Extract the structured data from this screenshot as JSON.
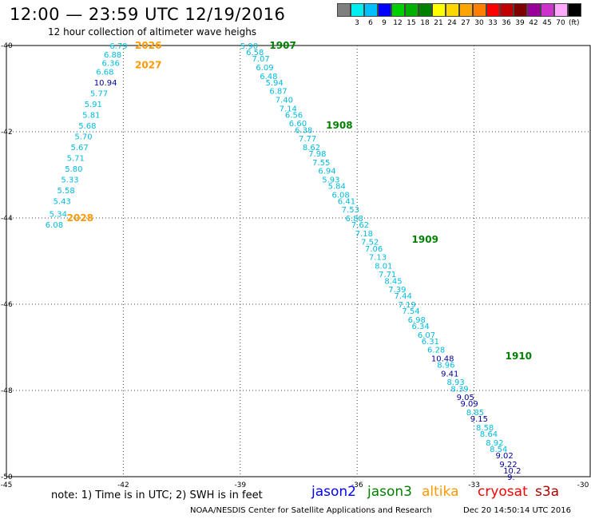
{
  "title": "12:00 — 23:59 UTC 12/19/2016",
  "subtitle": "12 hour collection of altimeter wave heighs",
  "legend": {
    "unit": "(ft)",
    "bins": [
      {
        "label": "",
        "color": "#7f7f7f"
      },
      {
        "label": "3",
        "color": "#00eeee"
      },
      {
        "label": "6",
        "color": "#00bfff"
      },
      {
        "label": "9",
        "color": "#0000ff"
      },
      {
        "label": "12",
        "color": "#00d000"
      },
      {
        "label": "15",
        "color": "#00b000"
      },
      {
        "label": "18",
        "color": "#008000"
      },
      {
        "label": "21",
        "color": "#ffff00"
      },
      {
        "label": "24",
        "color": "#ffd700"
      },
      {
        "label": "27",
        "color": "#ffa500"
      },
      {
        "label": "30",
        "color": "#ff7f00"
      },
      {
        "label": "33",
        "color": "#ff0000"
      },
      {
        "label": "36",
        "color": "#c00000"
      },
      {
        "label": "39",
        "color": "#800000"
      },
      {
        "label": "42",
        "color": "#990099"
      },
      {
        "label": "45",
        "color": "#cc33cc"
      },
      {
        "label": "70",
        "color": "#ffaaff"
      },
      {
        "label": "",
        "color": "#000000"
      }
    ]
  },
  "axes": {
    "lon_ticks": [
      "-45",
      "-42",
      "-39",
      "-36",
      "-33",
      "-30"
    ],
    "lat_ticks": [
      "-40",
      "-42",
      "-44",
      "-46",
      "-48",
      "-50"
    ]
  },
  "colors": {
    "cyan": "#00bbdd",
    "navy": "#000099",
    "green": "#008000",
    "orange": "#ff9900"
  },
  "tracks": [
    {
      "times": [
        {
          "label": "2026",
          "color": "orange",
          "lon": -41.7,
          "lat": -40.0
        },
        {
          "label": "2027",
          "color": "orange",
          "lon": -41.7,
          "lat": -40.45
        },
        {
          "label": "2028",
          "color": "orange",
          "lon": -43.45,
          "lat": -44.0
        }
      ],
      "obs": [
        {
          "v": "6.79",
          "lon": -42.35,
          "lat": -40.0,
          "c": "cyan"
        },
        {
          "v": "6.88",
          "lon": -42.5,
          "lat": -40.2,
          "c": "cyan"
        },
        {
          "v": "6.36",
          "lon": -42.55,
          "lat": -40.4,
          "c": "cyan"
        },
        {
          "v": "6.68",
          "lon": -42.7,
          "lat": -40.6,
          "c": "cyan"
        },
        {
          "v": "10.94",
          "lon": -42.75,
          "lat": -40.85,
          "c": "navy"
        },
        {
          "v": "5.77",
          "lon": -42.85,
          "lat": -41.1,
          "c": "cyan"
        },
        {
          "v": "5.91",
          "lon": -43.0,
          "lat": -41.35,
          "c": "cyan"
        },
        {
          "v": "5.81",
          "lon": -43.05,
          "lat": -41.6,
          "c": "cyan"
        },
        {
          "v": "5.68",
          "lon": -43.15,
          "lat": -41.85,
          "c": "cyan"
        },
        {
          "v": "5.70",
          "lon": -43.25,
          "lat": -42.1,
          "c": "cyan"
        },
        {
          "v": "5.67",
          "lon": -43.35,
          "lat": -42.35,
          "c": "cyan"
        },
        {
          "v": "5.71",
          "lon": -43.45,
          "lat": -42.6,
          "c": "cyan"
        },
        {
          "v": "5.80",
          "lon": -43.5,
          "lat": -42.85,
          "c": "cyan"
        },
        {
          "v": "5.33",
          "lon": -43.6,
          "lat": -43.1,
          "c": "cyan"
        },
        {
          "v": "5.58",
          "lon": -43.7,
          "lat": -43.35,
          "c": "cyan"
        },
        {
          "v": "5.43",
          "lon": -43.8,
          "lat": -43.6,
          "c": "cyan"
        },
        {
          "v": "5.34",
          "lon": -43.9,
          "lat": -43.9,
          "c": "cyan"
        },
        {
          "v": "6.08",
          "lon": -44.0,
          "lat": -44.15,
          "c": "cyan"
        }
      ]
    },
    {
      "times": [
        {
          "label": "1907",
          "color": "green",
          "lon": -38.25,
          "lat": -40.0
        },
        {
          "label": "1908",
          "color": "green",
          "lon": -36.8,
          "lat": -41.85
        },
        {
          "label": "1909",
          "color": "green",
          "lon": -34.6,
          "lat": -44.5
        },
        {
          "label": "1910",
          "color": "green",
          "lon": -32.2,
          "lat": -47.2
        }
      ],
      "obs": [
        {
          "v": "5.90",
          "lon": -39.0,
          "lat": -40.0,
          "c": "cyan"
        },
        {
          "v": "6.58",
          "lon": -38.85,
          "lat": -40.15,
          "c": "cyan"
        },
        {
          "v": "7.07",
          "lon": -38.7,
          "lat": -40.3,
          "c": "cyan"
        },
        {
          "v": "6.09",
          "lon": -38.6,
          "lat": -40.5,
          "c": "cyan"
        },
        {
          "v": "6.48",
          "lon": -38.5,
          "lat": -40.7,
          "c": "cyan"
        },
        {
          "v": "5.94",
          "lon": -38.35,
          "lat": -40.85,
          "c": "cyan"
        },
        {
          "v": "6.87",
          "lon": -38.25,
          "lat": -41.05,
          "c": "cyan"
        },
        {
          "v": "7.40",
          "lon": -38.1,
          "lat": -41.25,
          "c": "cyan"
        },
        {
          "v": "7.14",
          "lon": -38.0,
          "lat": -41.45,
          "c": "cyan"
        },
        {
          "v": "6.56",
          "lon": -37.85,
          "lat": -41.6,
          "c": "cyan"
        },
        {
          "v": "6.60",
          "lon": -37.75,
          "lat": -41.8,
          "c": "cyan"
        },
        {
          "v": "6.38",
          "lon": -37.6,
          "lat": -41.95,
          "c": "cyan"
        },
        {
          "v": "7.77",
          "lon": -37.5,
          "lat": -42.15,
          "c": "cyan"
        },
        {
          "v": "8.62",
          "lon": -37.4,
          "lat": -42.35,
          "c": "cyan"
        },
        {
          "v": "7.98",
          "lon": -37.25,
          "lat": -42.5,
          "c": "cyan"
        },
        {
          "v": "7.55",
          "lon": -37.15,
          "lat": -42.7,
          "c": "cyan"
        },
        {
          "v": "6.94",
          "lon": -37.0,
          "lat": -42.9,
          "c": "cyan"
        },
        {
          "v": "5.93",
          "lon": -36.9,
          "lat": -43.1,
          "c": "cyan"
        },
        {
          "v": "5.84",
          "lon": -36.75,
          "lat": -43.25,
          "c": "cyan"
        },
        {
          "v": "6.08",
          "lon": -36.65,
          "lat": -43.45,
          "c": "cyan"
        },
        {
          "v": "6.41",
          "lon": -36.5,
          "lat": -43.6,
          "c": "cyan"
        },
        {
          "v": "7.53",
          "lon": -36.4,
          "lat": -43.8,
          "c": "cyan"
        },
        {
          "v": "6.88",
          "lon": -36.3,
          "lat": -44.0,
          "c": "cyan"
        },
        {
          "v": "7.62",
          "lon": -36.15,
          "lat": -44.15,
          "c": "cyan"
        },
        {
          "v": "7.18",
          "lon": -36.05,
          "lat": -44.35,
          "c": "cyan"
        },
        {
          "v": "7.52",
          "lon": -35.9,
          "lat": -44.55,
          "c": "cyan"
        },
        {
          "v": "7.06",
          "lon": -35.8,
          "lat": -44.7,
          "c": "cyan"
        },
        {
          "v": "7.13",
          "lon": -35.7,
          "lat": -44.9,
          "c": "cyan"
        },
        {
          "v": "8.01",
          "lon": -35.55,
          "lat": -45.1,
          "c": "cyan"
        },
        {
          "v": "7.71",
          "lon": -35.45,
          "lat": -45.3,
          "c": "cyan"
        },
        {
          "v": "8.45",
          "lon": -35.3,
          "lat": -45.45,
          "c": "cyan"
        },
        {
          "v": "7.39",
          "lon": -35.2,
          "lat": -45.65,
          "c": "cyan"
        },
        {
          "v": "7.44",
          "lon": -35.05,
          "lat": -45.8,
          "c": "cyan"
        },
        {
          "v": "7.19",
          "lon": -34.95,
          "lat": -46.0,
          "c": "cyan"
        },
        {
          "v": "7.54",
          "lon": -34.85,
          "lat": -46.15,
          "c": "cyan"
        },
        {
          "v": "6.98",
          "lon": -34.7,
          "lat": -46.35,
          "c": "cyan"
        },
        {
          "v": "6.34",
          "lon": -34.6,
          "lat": -46.5,
          "c": "cyan"
        },
        {
          "v": "6.07",
          "lon": -34.45,
          "lat": -46.7,
          "c": "cyan"
        },
        {
          "v": "6.31",
          "lon": -34.35,
          "lat": -46.85,
          "c": "cyan"
        },
        {
          "v": "6.28",
          "lon": -34.2,
          "lat": -47.05,
          "c": "cyan"
        },
        {
          "v": "10.48",
          "lon": -34.1,
          "lat": -47.25,
          "c": "navy"
        },
        {
          "v": "8.96",
          "lon": -33.95,
          "lat": -47.4,
          "c": "cyan"
        },
        {
          "v": "9.41",
          "lon": -33.85,
          "lat": -47.6,
          "c": "navy"
        },
        {
          "v": "8.93",
          "lon": -33.7,
          "lat": -47.8,
          "c": "cyan"
        },
        {
          "v": "8.39",
          "lon": -33.6,
          "lat": -47.95,
          "c": "cyan"
        },
        {
          "v": "9.05",
          "lon": -33.45,
          "lat": -48.15,
          "c": "navy"
        },
        {
          "v": "9.09",
          "lon": -33.35,
          "lat": -48.3,
          "c": "navy"
        },
        {
          "v": "8.85",
          "lon": -33.2,
          "lat": -48.5,
          "c": "cyan"
        },
        {
          "v": "9.15",
          "lon": -33.1,
          "lat": -48.65,
          "c": "navy"
        },
        {
          "v": "8.58",
          "lon": -32.95,
          "lat": -48.85,
          "c": "cyan"
        },
        {
          "v": "8.64",
          "lon": -32.85,
          "lat": -49.0,
          "c": "cyan"
        },
        {
          "v": "8.92",
          "lon": -32.7,
          "lat": -49.2,
          "c": "cyan"
        },
        {
          "v": "8.54",
          "lon": -32.6,
          "lat": -49.35,
          "c": "cyan"
        },
        {
          "v": "9.02",
          "lon": -32.45,
          "lat": -49.5,
          "c": "navy"
        },
        {
          "v": "9.22",
          "lon": -32.35,
          "lat": -49.7,
          "c": "navy"
        },
        {
          "v": "10.2",
          "lon": -32.25,
          "lat": -49.85,
          "c": "navy"
        },
        {
          "v": "9.",
          "lon": -32.15,
          "lat": -50.0,
          "c": "navy"
        }
      ]
    }
  ],
  "footer": {
    "note": "note:  1) Time is in UTC;  2) SWH is in feet",
    "satellites": [
      {
        "name": "jason2",
        "color": "#0000ff"
      },
      {
        "name": "jason3",
        "color": "#008000"
      },
      {
        "name": "altika",
        "color": "#ff9900"
      },
      {
        "name": "cryosat",
        "color": "#ff0000"
      },
      {
        "name": "s3a",
        "color": "#b00000"
      }
    ],
    "credit": "NOAA/NESDIS Center for Satellite Applications and Research",
    "timestamp": "Dec 20 14:50:14 UTC 2016"
  }
}
